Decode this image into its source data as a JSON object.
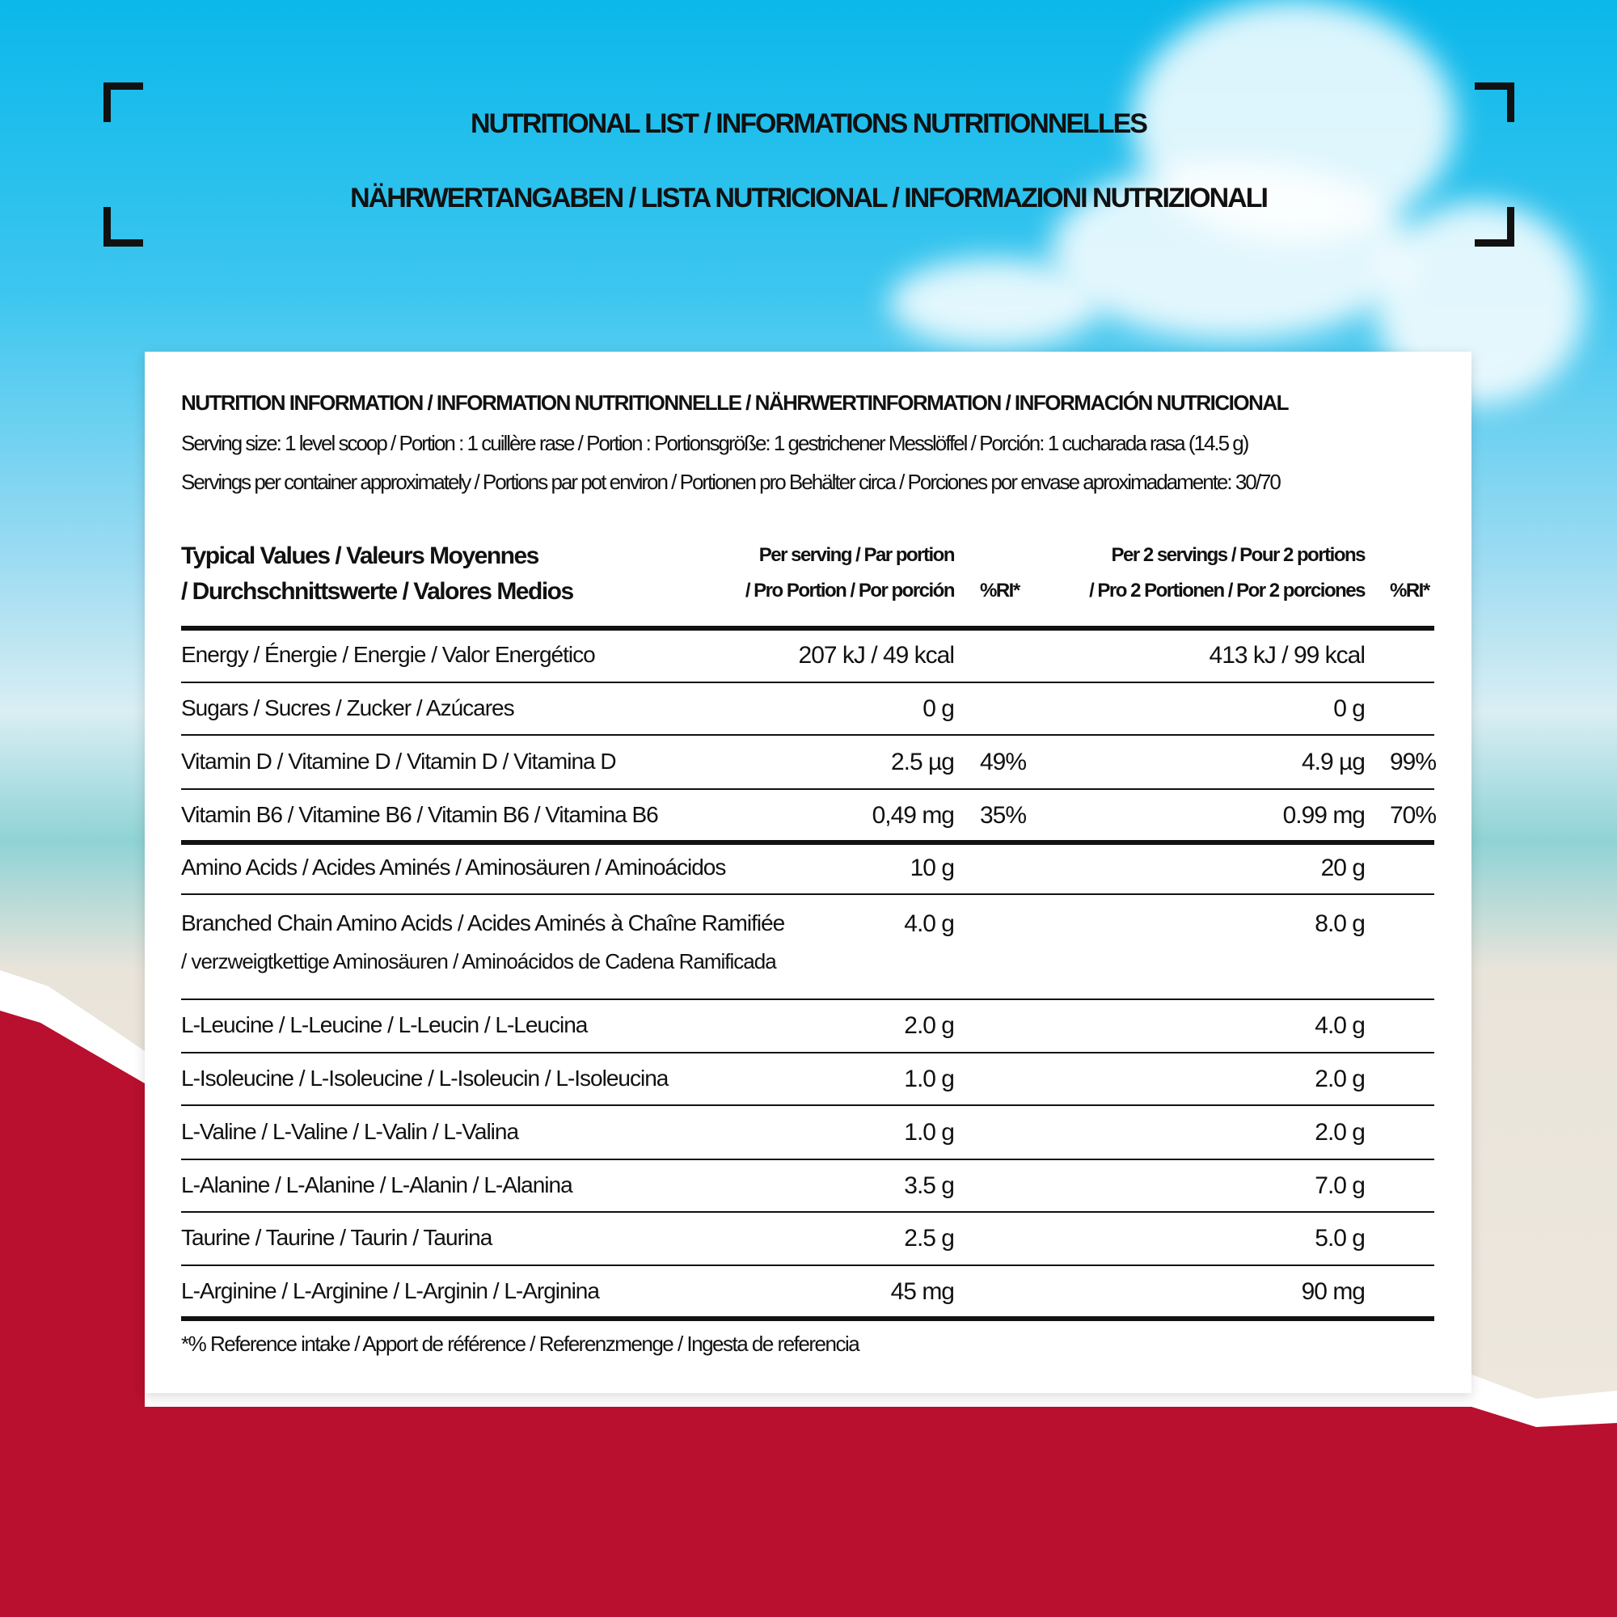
{
  "title": {
    "line1": "NUTRITIONAL LIST / INFORMATIONS NUTRITIONNELLES",
    "line2": "NÄHRWERTANGABEN / LISTA NUTRICIONAL / INFORMAZIONI NUTRIZIONALI"
  },
  "colors": {
    "sky": "#0bb8ea",
    "red": "#b8102e",
    "text": "#111111"
  },
  "card": {
    "heading": "NUTRITION INFORMATION / INFORMATION NUTRITIONNELLE / NÄHRWERTINFORMATION / INFORMACIÓN NUTRICIONAL",
    "serving_size": "Serving size: 1 level scoop / Portion : 1 cuillère rase / Portion : Portionsgröße: 1 gestrichener Messlöffel / Porción: 1 cucharada rasa (14.5 g)",
    "servings_per_container": "Servings per container approximately / Portions par pot environ / Portionen pro Behälter circa / Porciones por envase aproximadamente: 30/70",
    "columns": {
      "typical_1": "Typical Values / Valeurs Moyennes",
      "typical_2": "/ Durchschnittswerte / Valores Medios",
      "per_serving_1": "Per serving / Par portion",
      "per_serving_2": "/ Pro Portion / Por porción",
      "ri_1": "%RI*",
      "per_2_1": "Per 2 servings / Pour 2 portions",
      "per_2_2": "/ Pro 2 Portionen / Por 2 porciones",
      "ri_2": "%RI*"
    },
    "rows": [
      {
        "label": "Energy / Énergie / Energie / Valor Energético",
        "per": "207 kJ / 49 kcal",
        "ri": "",
        "per2": "413 kJ / 99 kcal",
        "ri2": ""
      },
      {
        "label": "Sugars / Sucres / Zucker / Azúcares",
        "per": "0 g",
        "ri": "",
        "per2": "0 g",
        "ri2": ""
      },
      {
        "label": "Vitamin D / Vitamine D / Vitamin D / Vitamina D",
        "per": "2.5 µg",
        "ri": "49%",
        "per2": "4.9 µg",
        "ri2": "99%"
      },
      {
        "label": "Vitamin B6 / Vitamine B6 / Vitamin B6 / Vitamina B6",
        "per": "0,49 mg",
        "ri": "35%",
        "per2": "0.99 mg",
        "ri2": "70%"
      },
      {
        "label": "Amino Acids / Acides Aminés / Aminosäuren / Aminoácidos",
        "per": "10 g",
        "ri": "",
        "per2": "20 g",
        "ri2": ""
      },
      {
        "label": "Branched Chain Amino Acids / Acides Aminés à Chaîne Ramifiée",
        "label2": "/ verzweigtkettige Aminosäuren / Aminoácidos de Cadena Ramificada",
        "per": "4.0 g",
        "ri": "",
        "per2": "8.0 g",
        "ri2": ""
      },
      {
        "label": "L-Leucine / L-Leucine / L-Leucin / L-Leucina",
        "per": "2.0 g",
        "ri": "",
        "per2": "4.0 g",
        "ri2": ""
      },
      {
        "label": "L-Isoleucine / L-Isoleucine / L-Isoleucin / L-Isoleucina",
        "per": "1.0 g",
        "ri": "",
        "per2": "2.0 g",
        "ri2": ""
      },
      {
        "label": "L-Valine / L-Valine / L-Valin / L-Valina",
        "per": "1.0 g",
        "ri": "",
        "per2": "2.0 g",
        "ri2": ""
      },
      {
        "label": "L-Alanine / L-Alanine / L-Alanin / L-Alanina",
        "per": "3.5 g",
        "ri": "",
        "per2": "7.0 g",
        "ri2": ""
      },
      {
        "label": "Taurine / Taurine / Taurin / Taurina",
        "per": "2.5 g",
        "ri": "",
        "per2": "5.0 g",
        "ri2": ""
      },
      {
        "label": "L-Arginine / L-Arginine / L-Arginin / L-Arginina",
        "per": "45 mg",
        "ri": "",
        "per2": "90 mg",
        "ri2": ""
      }
    ],
    "footnote": "*% Reference intake / Apport de référence  / Referenzmenge / Ingesta de referencia"
  }
}
